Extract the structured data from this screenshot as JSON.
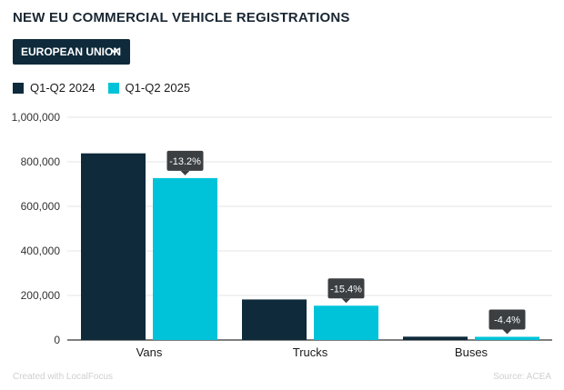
{
  "header": {
    "title": "NEW EU COMMERCIAL VEHICLE REGISTRATIONS"
  },
  "selector": {
    "label": "EUROPEAN UNION",
    "icon": "chevron-down-icon"
  },
  "footer": {
    "credit": "Created with LocalFocus",
    "source": "Source: ACEA"
  },
  "colors": {
    "series_2024": "#0e2a3b",
    "series_2025": "#00c3d9",
    "badge": "#3b3f42",
    "grid": "#e6e6e6",
    "axis": "#333333"
  },
  "chart_data": {
    "type": "bar",
    "title": "",
    "xlabel": "",
    "ylabel": "",
    "categories": [
      "Vans",
      "Trucks",
      "Buses"
    ],
    "series": [
      {
        "name": "Q1-Q2 2024",
        "values": [
          838000,
          182000,
          15000
        ]
      },
      {
        "name": "Q1-Q2 2025",
        "values": [
          727000,
          154000,
          14300
        ]
      }
    ],
    "annotations": [
      "-13.2%",
      "-15.4%",
      "-4.4%"
    ],
    "ylim": [
      0,
      1000000
    ],
    "yticks": [
      0,
      200000,
      400000,
      600000,
      800000,
      1000000
    ],
    "ytick_labels": [
      "0",
      "200,000",
      "400,000",
      "600,000",
      "800,000",
      "1,000,000"
    ],
    "grid": true,
    "legend_position": "top-left"
  }
}
